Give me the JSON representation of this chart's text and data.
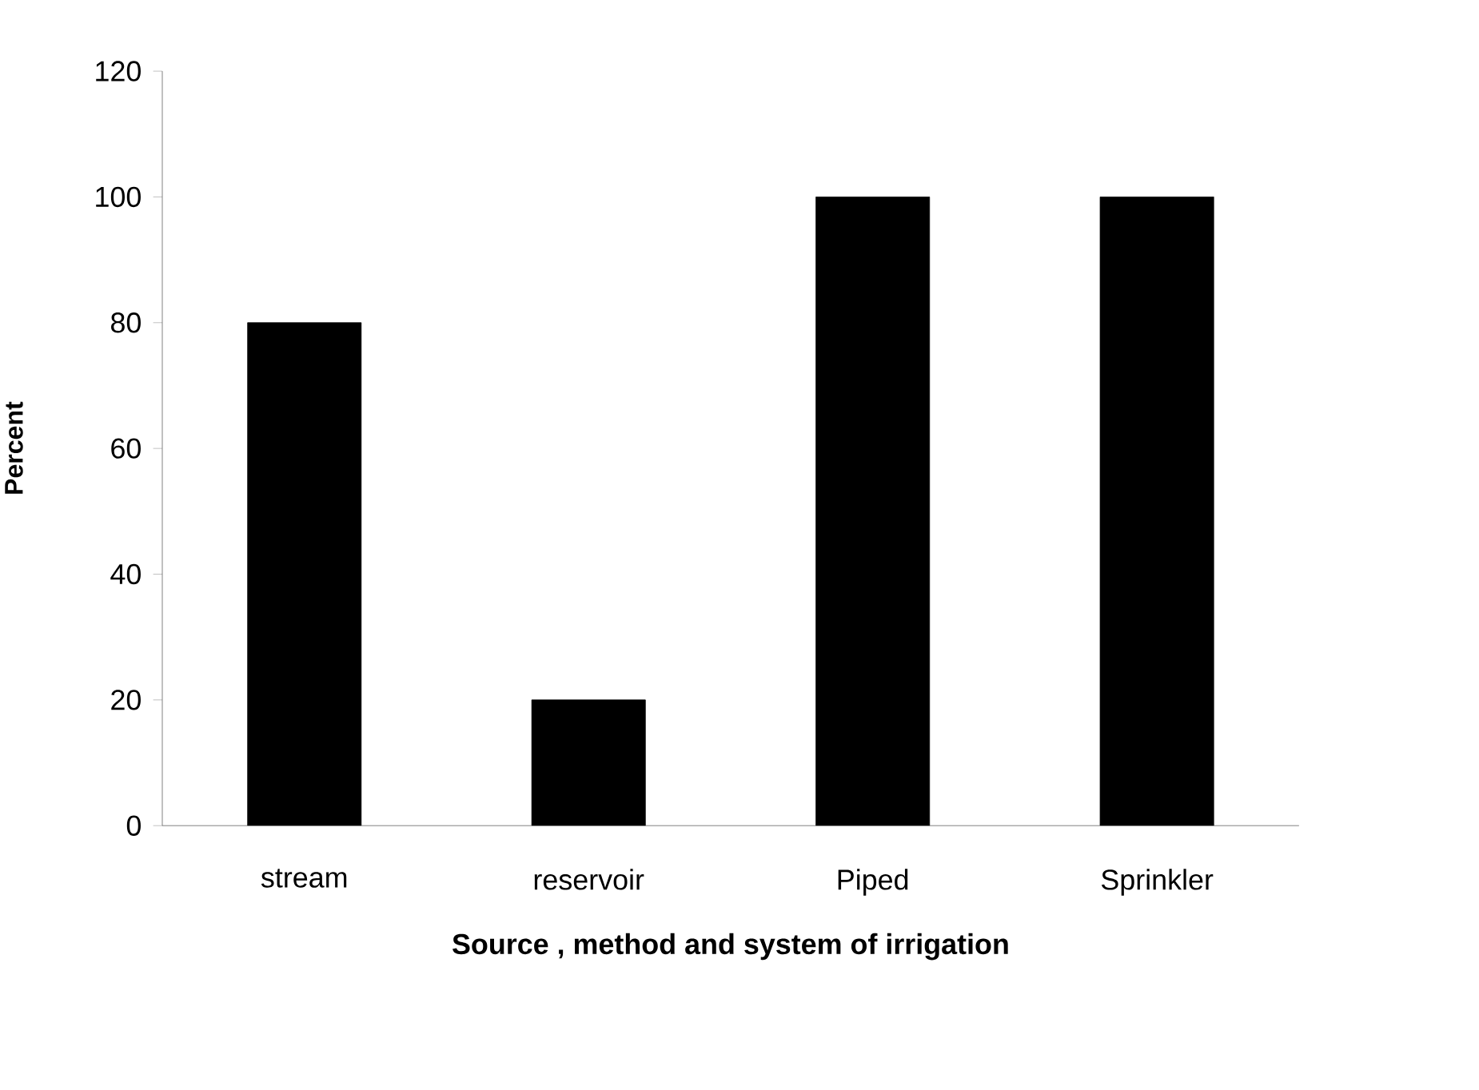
{
  "chart_data": {
    "type": "bar",
    "categories": [
      "stream",
      "reservoir",
      "Piped",
      "Sprinkler"
    ],
    "values": [
      80,
      20,
      100,
      100
    ],
    "color": "#000000",
    "xlabel": "Source , method  and system of irrigation",
    "ylabel": "Percent",
    "ylim": [
      0,
      120
    ],
    "yticks": [
      0,
      20,
      40,
      60,
      80,
      100,
      120
    ]
  }
}
